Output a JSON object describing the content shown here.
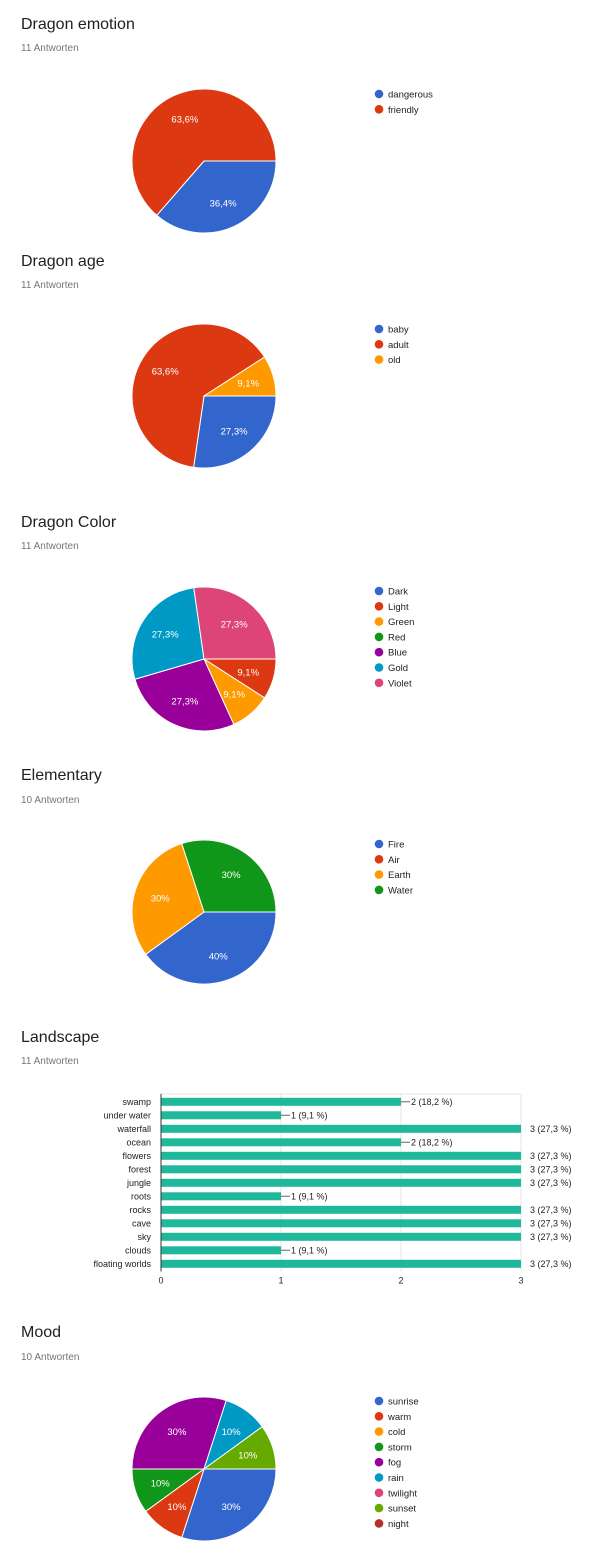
{
  "sections": [
    {
      "title": "Dragon emotion",
      "subtitle": "11 Antworten"
    },
    {
      "title": "Dragon age",
      "subtitle": "11 Antworten"
    },
    {
      "title": "Dragon Color",
      "subtitle": "11 Antworten"
    },
    {
      "title": "Elementary",
      "subtitle": "10 Antworten"
    },
    {
      "title": "Landscape",
      "subtitle": "11 Antworten"
    },
    {
      "title": "Mood",
      "subtitle": "10 Antworten"
    }
  ],
  "chart_data": [
    {
      "type": "pie",
      "title": "Dragon emotion",
      "legend_position": "right",
      "slices": [
        {
          "label": "dangerous",
          "value": 36.4,
          "display": "36,4%",
          "color": "#3366cc"
        },
        {
          "label": "friendly",
          "value": 63.6,
          "display": "63,6%",
          "color": "#dc3912"
        }
      ]
    },
    {
      "type": "pie",
      "title": "Dragon age",
      "legend_position": "right",
      "slices": [
        {
          "label": "baby",
          "value": 27.3,
          "display": "27,3%",
          "color": "#3366cc"
        },
        {
          "label": "adult",
          "value": 63.6,
          "display": "63,6%",
          "color": "#dc3912"
        },
        {
          "label": "old",
          "value": 9.1,
          "display": "9,1%",
          "color": "#ff9900"
        }
      ]
    },
    {
      "type": "pie",
      "title": "Dragon Color",
      "legend_position": "right",
      "slices": [
        {
          "label": "Dark",
          "value": 0,
          "display": "",
          "color": "#3366cc"
        },
        {
          "label": "Light",
          "value": 9.1,
          "display": "9,1%",
          "color": "#dc3912"
        },
        {
          "label": "Green",
          "value": 9.1,
          "display": "9,1%",
          "color": "#ff9900"
        },
        {
          "label": "Red",
          "value": 0,
          "display": "",
          "color": "#109618"
        },
        {
          "label": "Blue",
          "value": 27.3,
          "display": "27,3%",
          "color": "#990099"
        },
        {
          "label": "Gold",
          "value": 27.3,
          "display": "27,3%",
          "color": "#0099c6"
        },
        {
          "label": "Violet",
          "value": 27.3,
          "display": "27,3%",
          "color": "#dd4477"
        }
      ]
    },
    {
      "type": "pie",
      "title": "Elementary",
      "legend_position": "right",
      "slices": [
        {
          "label": "Fire",
          "value": 40,
          "display": "40%",
          "color": "#3366cc"
        },
        {
          "label": "Air",
          "value": 0,
          "display": "",
          "color": "#dc3912"
        },
        {
          "label": "Earth",
          "value": 30,
          "display": "30%",
          "color": "#ff9900"
        },
        {
          "label": "Water",
          "value": 30,
          "display": "30%",
          "color": "#109618"
        }
      ]
    },
    {
      "type": "bar",
      "orientation": "horizontal",
      "title": "Landscape",
      "color": "#1fb89a",
      "xlim": [
        0,
        3
      ],
      "xticks": [
        "0",
        "1",
        "2",
        "3"
      ],
      "grid": true,
      "categories": [
        "swamp",
        "under water",
        "waterfall",
        "ocean",
        "flowers",
        "forest",
        "jungle",
        "roots",
        "rocks",
        "cave",
        "sky",
        "clouds",
        "floating worlds"
      ],
      "values": [
        2,
        1,
        3,
        2,
        3,
        3,
        3,
        1,
        3,
        3,
        3,
        1,
        3
      ],
      "value_labels": [
        "2 (18,2 %)",
        "1 (9,1 %)",
        "3 (27,3 %)",
        "2 (18,2 %)",
        "3 (27,3 %)",
        "3 (27,3 %)",
        "3 (27,3 %)",
        "1 (9,1 %)",
        "3 (27,3 %)",
        "3 (27,3 %)",
        "3 (27,3 %)",
        "1 (9,1 %)",
        "3 (27,3 %)"
      ]
    },
    {
      "type": "pie",
      "title": "Mood",
      "legend_position": "right",
      "slices": [
        {
          "label": "sunrise",
          "value": 30,
          "display": "30%",
          "color": "#3366cc"
        },
        {
          "label": "warm",
          "value": 10,
          "display": "10%",
          "color": "#dc3912"
        },
        {
          "label": "cold",
          "value": 0,
          "display": "",
          "color": "#ff9900"
        },
        {
          "label": "storm",
          "value": 10,
          "display": "10%",
          "color": "#109618"
        },
        {
          "label": "fog",
          "value": 30,
          "display": "30%",
          "color": "#990099"
        },
        {
          "label": "rain",
          "value": 10,
          "display": "10%",
          "color": "#0099c6"
        },
        {
          "label": "twilight",
          "value": 0,
          "display": "",
          "color": "#dd4477"
        },
        {
          "label": "sunset",
          "value": 10,
          "display": "10%",
          "color": "#66aa00"
        },
        {
          "label": "night",
          "value": 0,
          "display": "",
          "color": "#b82e2e"
        }
      ]
    }
  ]
}
